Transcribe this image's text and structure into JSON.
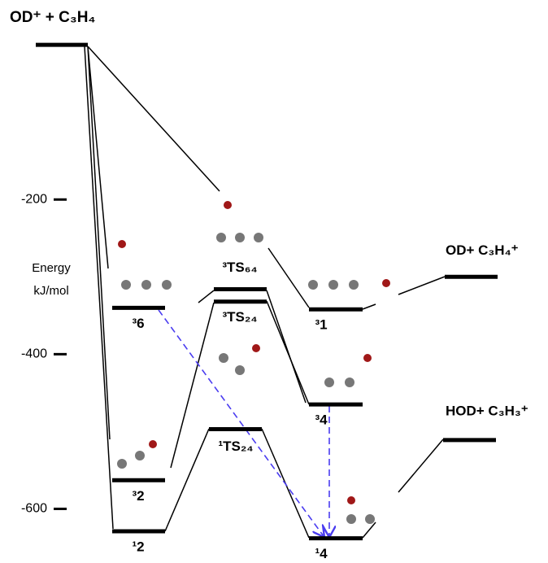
{
  "axis": {
    "title": [
      "Energy",
      "kJ/mol"
    ],
    "ylim": [
      -670,
      58
    ],
    "yticks": [
      -200,
      -400,
      -600
    ]
  },
  "levels": [
    {
      "label": "OD⁺ + C₃H₄",
      "energy": 0
    },
    {
      "label": "³TS₆₄",
      "energy": -316
    },
    {
      "label": "³6",
      "energy": -340
    },
    {
      "label": "³TS₂₄",
      "energy": -332
    },
    {
      "label": "³1",
      "energy": -342
    },
    {
      "label": "OD+ C₃H₄⁺",
      "energy": -300
    },
    {
      "label": "³4",
      "energy": -465
    },
    {
      "label": "HOD+ C₃H₃⁺",
      "energy": -511
    },
    {
      "label": "¹TS₂₄",
      "energy": -497
    },
    {
      "label": "³2",
      "energy": -563
    },
    {
      "label": "¹2",
      "energy": -629
    },
    {
      "label": "¹4",
      "energy": -638
    }
  ]
}
